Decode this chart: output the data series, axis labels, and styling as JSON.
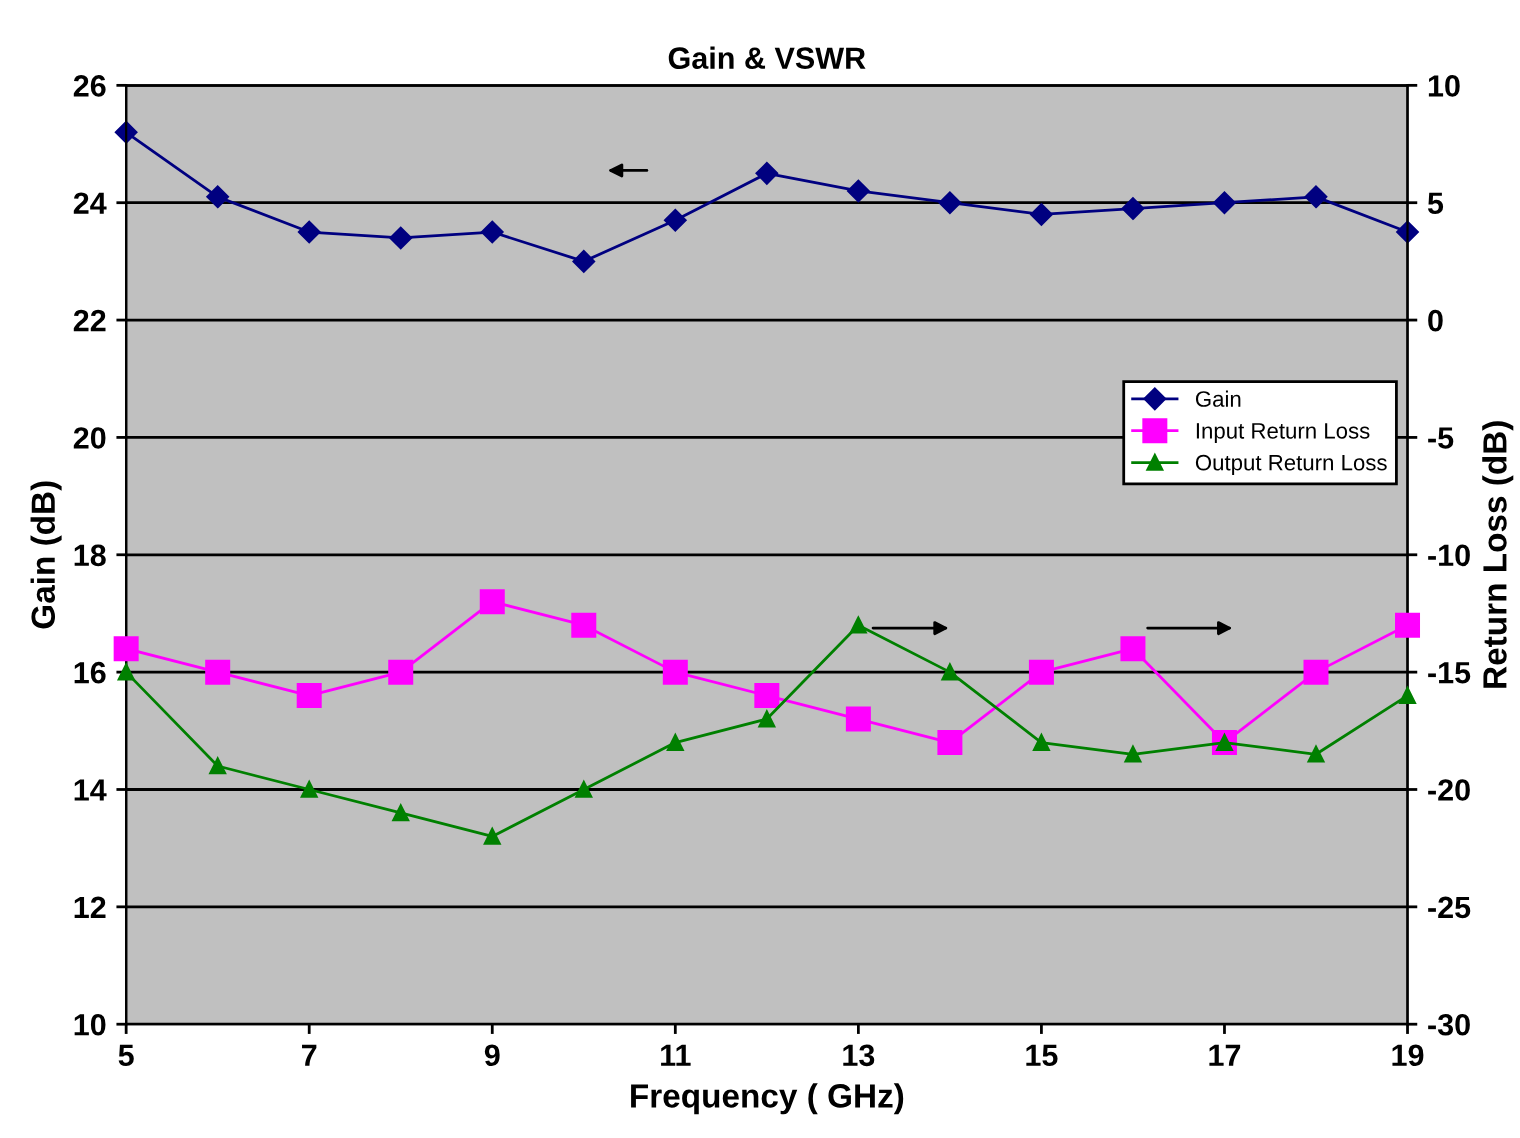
{
  "chart_data": {
    "type": "line",
    "title": "Gain & VSWR",
    "xlabel": "Frequency ( GHz)",
    "ylabel": "Gain (dB)",
    "y2label": "Return Loss (dB)",
    "x": [
      5,
      6,
      7,
      8,
      9,
      10,
      11,
      12,
      13,
      14,
      15,
      16,
      17,
      18,
      19
    ],
    "series": [
      {
        "name": "Gain",
        "color": "#000080",
        "marker": "diamond",
        "values": [
          25.2,
          24.1,
          23.5,
          23.4,
          23.5,
          23.0,
          23.7,
          24.5,
          24.2,
          24.0,
          23.8,
          23.9,
          24.0,
          24.1,
          23.5
        ]
      },
      {
        "name": "Input Return Loss",
        "color": "#ff00ff",
        "marker": "square",
        "axis": "y2",
        "values": [
          -14,
          -15,
          -16,
          -15,
          -12,
          -13,
          -15,
          -16,
          -17,
          -18,
          -15,
          -14,
          -18,
          -15,
          -13
        ]
      },
      {
        "name": "Output Return Loss",
        "color": "#008000",
        "marker": "triangle",
        "axis": "y2",
        "values": [
          -15,
          -19,
          -20,
          -21,
          -22,
          -20,
          -18,
          -17,
          -13,
          -15,
          -18,
          -18.5,
          -18,
          -18.5,
          -16
        ]
      }
    ],
    "xlim": [
      5,
      19
    ],
    "xticks": [
      5,
      7,
      9,
      11,
      13,
      15,
      17,
      19
    ],
    "ylim": [
      10,
      26
    ],
    "yticks": [
      10,
      12,
      14,
      16,
      18,
      20,
      22,
      24,
      26
    ],
    "y2lim": [
      -30,
      10
    ],
    "y2ticks": [
      -30,
      -25,
      -20,
      -15,
      -10,
      -5,
      0,
      5,
      10
    ],
    "grid": "y",
    "legend": "right"
  }
}
